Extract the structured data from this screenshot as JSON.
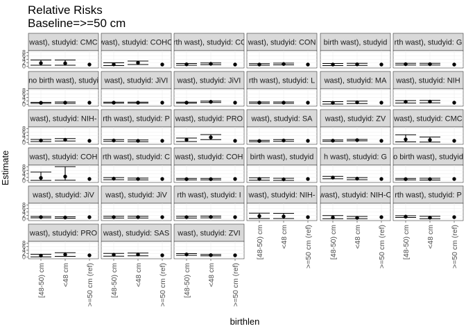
{
  "chart_data": {
    "type": "scatter",
    "title": "Relative Risks",
    "subtitle": "Baseline=>=50 cm",
    "xlabel": "birthlen",
    "ylabel": "Estimate",
    "categories": [
      "[48-50) cm",
      "<48 cm",
      ">=50 cm (ref)"
    ],
    "y_ticks": [
      0,
      2,
      4,
      6,
      8
    ],
    "ylim": [
      -1,
      9
    ],
    "grid": true,
    "facets": [
      {
        "label": "wast), studyid: CMC",
        "estimates": [
          1.8,
          1.7,
          1.0
        ],
        "lower": [
          0.6,
          0.6,
          1.0
        ],
        "upper": [
          3.6,
          3.6,
          1.0
        ]
      },
      {
        "label": "wast), studyid: COHO",
        "estimates": [
          1.1,
          2.0,
          1.0
        ],
        "lower": [
          0.4,
          1.0,
          1.0
        ],
        "upper": [
          2.0,
          3.0,
          1.0
        ]
      },
      {
        "label": "irth wast), studyid: CO",
        "estimates": [
          1.1,
          1.4,
          1.0
        ],
        "lower": [
          0.6,
          0.9,
          1.0
        ],
        "upper": [
          1.6,
          1.9,
          1.0
        ]
      },
      {
        "label": "wast), studyid: CON",
        "estimates": [
          1.0,
          1.3,
          1.0
        ],
        "lower": [
          0.6,
          0.8,
          1.0
        ],
        "upper": [
          1.5,
          1.8,
          1.0
        ]
      },
      {
        "label": "birth wast), studyid",
        "estimates": [
          1.0,
          1.1,
          1.0
        ],
        "lower": [
          0.4,
          0.5,
          1.0
        ],
        "upper": [
          1.6,
          1.7,
          1.0
        ]
      },
      {
        "label": "rth wast), studyid: G",
        "estimates": [
          1.2,
          1.2,
          1.0
        ],
        "lower": [
          0.7,
          0.7,
          1.0
        ],
        "upper": [
          1.7,
          1.7,
          1.0
        ]
      },
      {
        "label": "no birth wast), studyi",
        "estimates": [
          0.9,
          1.0,
          1.0
        ],
        "lower": [
          0.6,
          0.6,
          1.0
        ],
        "upper": [
          1.2,
          1.4,
          1.0
        ]
      },
      {
        "label": "wast), studyid: JiVI",
        "estimates": [
          1.0,
          1.0,
          1.0
        ],
        "lower": [
          0.7,
          0.7,
          1.0
        ],
        "upper": [
          1.3,
          1.3,
          1.0
        ]
      },
      {
        "label": "wast), studyid: JiVI",
        "estimates": [
          1.0,
          1.5,
          1.0
        ],
        "lower": [
          0.7,
          1.1,
          1.0
        ],
        "upper": [
          1.3,
          1.9,
          1.0
        ]
      },
      {
        "label": "rth wast), studyid: L",
        "estimates": [
          1.0,
          1.0,
          1.0
        ],
        "lower": [
          0.6,
          0.6,
          1.0
        ],
        "upper": [
          1.4,
          1.4,
          1.0
        ]
      },
      {
        "label": "wast), studyid: MA",
        "estimates": [
          0.9,
          1.2,
          1.0
        ],
        "lower": [
          0.2,
          0.5,
          1.0
        ],
        "upper": [
          1.6,
          1.9,
          1.0
        ]
      },
      {
        "label": "wast), studyid: NIH",
        "estimates": [
          1.5,
          1.6,
          1.0
        ],
        "lower": [
          0.8,
          0.9,
          1.0
        ],
        "upper": [
          2.2,
          2.3,
          1.0
        ]
      },
      {
        "label": "wast), studyid: NIH-",
        "estimates": [
          1.2,
          1.6,
          1.0
        ],
        "lower": [
          0.6,
          0.9,
          1.0
        ],
        "upper": [
          1.8,
          2.3,
          1.0
        ]
      },
      {
        "label": "rth wast), studyid: P",
        "estimates": [
          1.2,
          1.0,
          1.0
        ],
        "lower": [
          0.7,
          0.5,
          1.0
        ],
        "upper": [
          1.7,
          1.5,
          1.0
        ]
      },
      {
        "label": "wast), studyid: PRO",
        "estimates": [
          1.6,
          3.0,
          1.0
        ],
        "lower": [
          0.6,
          1.7,
          1.0
        ],
        "upper": [
          2.6,
          4.6,
          1.0
        ]
      },
      {
        "label": "wast), studyid: SA",
        "estimates": [
          0.9,
          1.2,
          1.0
        ],
        "lower": [
          0.5,
          0.7,
          1.0
        ],
        "upper": [
          1.3,
          1.7,
          1.0
        ]
      },
      {
        "label": "wast), studyid: ZV",
        "estimates": [
          1.1,
          1.4,
          1.0
        ],
        "lower": [
          0.7,
          1.0,
          1.0
        ],
        "upper": [
          1.5,
          1.8,
          1.0
        ]
      },
      {
        "label": "wast), studyid: CMC",
        "estimates": [
          1.8,
          1.5,
          1.0
        ],
        "lower": [
          0.4,
          0.3,
          1.0
        ],
        "upper": [
          4.5,
          3.2,
          1.0
        ]
      },
      {
        "label": "wast), studyid: COH",
        "estimates": [
          1.6,
          2.4,
          1.0
        ],
        "lower": [
          0.2,
          0.3,
          1.0
        ],
        "upper": [
          5.0,
          8.1,
          1.0
        ]
      },
      {
        "label": "rth wast), studyid: C",
        "estimates": [
          1.2,
          1.0,
          1.0
        ],
        "lower": [
          0.6,
          0.5,
          1.0
        ],
        "upper": [
          1.8,
          1.5,
          1.0
        ]
      },
      {
        "label": "wast), studyid: COH",
        "estimates": [
          0.9,
          0.9,
          1.0
        ],
        "lower": [
          0.5,
          0.5,
          1.0
        ],
        "upper": [
          1.3,
          1.3,
          1.0
        ]
      },
      {
        "label": "birth wast), studyid",
        "estimates": [
          1.0,
          0.8,
          1.0
        ],
        "lower": [
          0.3,
          0.2,
          1.0
        ],
        "upper": [
          1.7,
          1.4,
          1.0
        ]
      },
      {
        "label": "h wast), studyid: G",
        "estimates": [
          1.8,
          1.2,
          1.0
        ],
        "lower": [
          1.1,
          0.6,
          1.0
        ],
        "upper": [
          2.5,
          1.8,
          1.0
        ]
      },
      {
        "label": "o birth wast), studyid",
        "estimates": [
          0.9,
          0.9,
          1.0
        ],
        "lower": [
          0.5,
          0.4,
          1.0
        ],
        "upper": [
          1.3,
          1.4,
          1.0
        ]
      },
      {
        "label": "wast), studyid: JiV",
        "estimates": [
          1.0,
          0.8,
          1.0
        ],
        "lower": [
          0.6,
          0.4,
          1.0
        ],
        "upper": [
          1.4,
          1.2,
          1.0
        ]
      },
      {
        "label": "wast), studyid: JiV",
        "estimates": [
          1.0,
          1.0,
          1.0
        ],
        "lower": [
          0.5,
          0.5,
          1.0
        ],
        "upper": [
          1.5,
          1.5,
          1.0
        ]
      },
      {
        "label": "rth wast), studyid: I",
        "estimates": [
          1.0,
          1.1,
          1.0
        ],
        "lower": [
          0.5,
          0.6,
          1.0
        ],
        "upper": [
          1.5,
          1.6,
          1.0
        ]
      },
      {
        "label": "wast), studyid: NIH-",
        "estimates": [
          1.6,
          1.4,
          1.0
        ],
        "lower": [
          0.2,
          0.2,
          1.0
        ],
        "upper": [
          3.3,
          3.2,
          1.0
        ]
      },
      {
        "label": "wast), studyid: NIH-C",
        "estimates": [
          0.8,
          0.6,
          1.0
        ],
        "lower": [
          0.1,
          0.1,
          1.0
        ],
        "upper": [
          1.9,
          1.4,
          1.0
        ]
      },
      {
        "label": "rth wast), studyid: P",
        "estimates": [
          1.3,
          0.7,
          1.0
        ],
        "lower": [
          0.8,
          0.1,
          1.0
        ],
        "upper": [
          1.8,
          1.5,
          1.0
        ]
      },
      {
        "label": "wast), studyid: PRO",
        "estimates": [
          0.8,
          1.4,
          1.0
        ],
        "lower": [
          0.1,
          0.4,
          1.0
        ],
        "upper": [
          1.6,
          2.5,
          1.0
        ]
      },
      {
        "label": "wast), studyid: SAS",
        "estimates": [
          1.3,
          1.5,
          1.0
        ],
        "lower": [
          0.5,
          0.7,
          1.0
        ],
        "upper": [
          2.1,
          2.3,
          1.0
        ]
      },
      {
        "label": "wast), studyid: ZVI",
        "estimates": [
          1.5,
          1.1,
          1.0
        ],
        "lower": [
          1.0,
          0.7,
          1.0
        ],
        "upper": [
          2.0,
          1.5,
          1.0
        ]
      }
    ]
  }
}
